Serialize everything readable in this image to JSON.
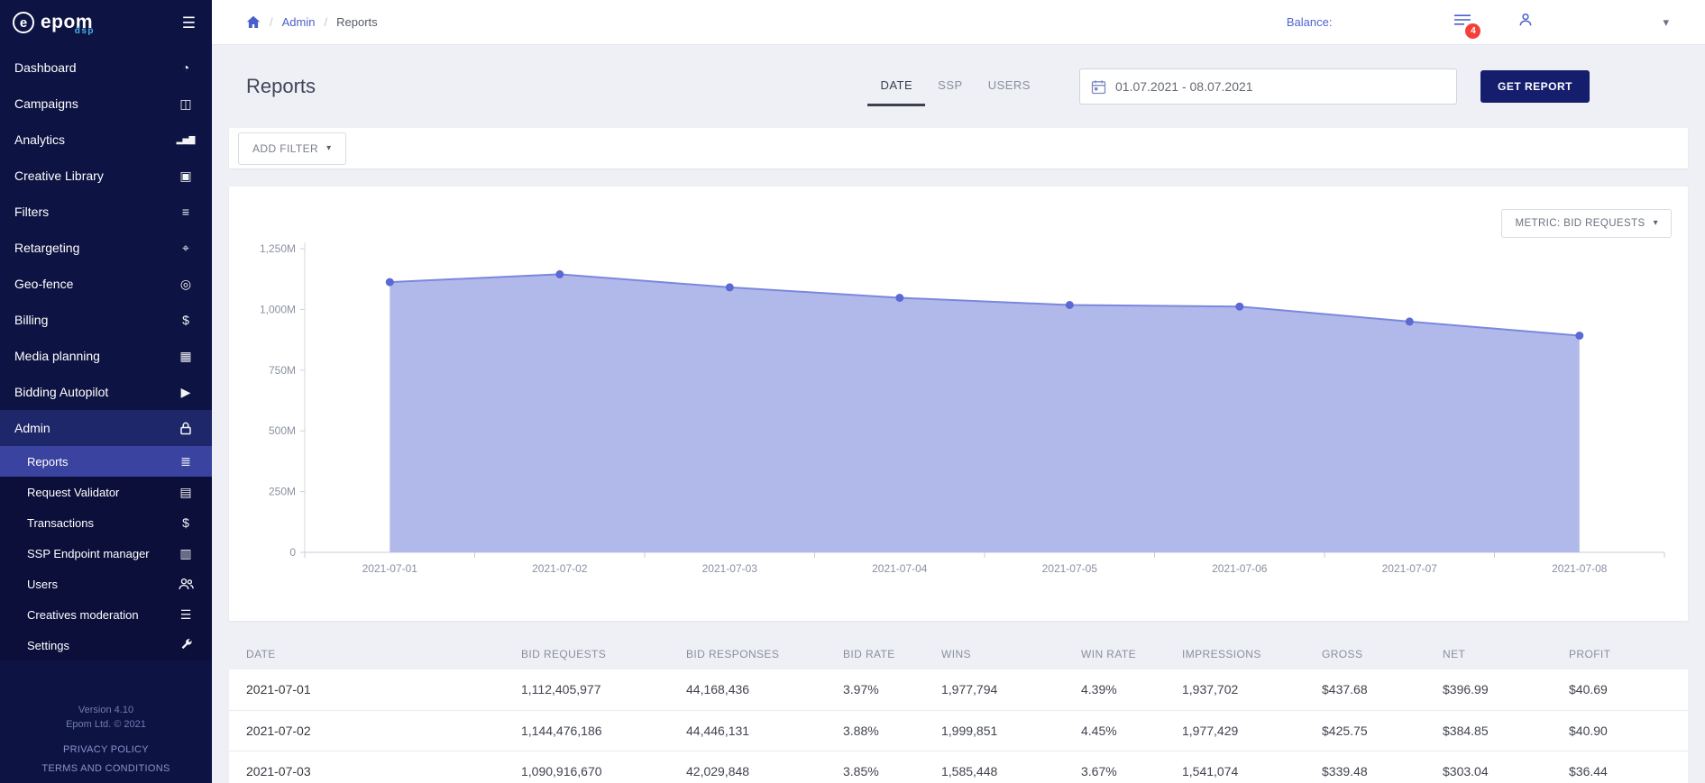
{
  "brand": {
    "mark": "e",
    "name": "epom",
    "sub": "dsp"
  },
  "topbar": {
    "breadcrumb": {
      "admin": "Admin",
      "current": "Reports"
    },
    "balance_label": "Balance:",
    "notification_count": "4"
  },
  "sidebar": {
    "items": [
      {
        "label": "Dashboard",
        "icon": "dashboard-icon"
      },
      {
        "label": "Campaigns",
        "icon": "campaigns-icon"
      },
      {
        "label": "Analytics",
        "icon": "analytics-icon"
      },
      {
        "label": "Creative Library",
        "icon": "creative-library-icon"
      },
      {
        "label": "Filters",
        "icon": "filters-icon"
      },
      {
        "label": "Retargeting",
        "icon": "retargeting-icon"
      },
      {
        "label": "Geo-fence",
        "icon": "geo-fence-icon"
      },
      {
        "label": "Billing",
        "icon": "billing-icon"
      },
      {
        "label": "Media planning",
        "icon": "media-planning-icon"
      },
      {
        "label": "Bidding Autopilot",
        "icon": "bidding-autopilot-icon"
      },
      {
        "label": "Admin",
        "icon": "lock-icon",
        "active": true,
        "children": [
          {
            "label": "Reports",
            "icon": "reports-icon",
            "active": true
          },
          {
            "label": "Request Validator",
            "icon": "request-validator-icon"
          },
          {
            "label": "Transactions",
            "icon": "transactions-icon"
          },
          {
            "label": "SSP Endpoint manager",
            "icon": "ssp-endpoint-icon"
          },
          {
            "label": "Users",
            "icon": "users-icon"
          },
          {
            "label": "Creatives moderation",
            "icon": "creatives-moderation-icon"
          },
          {
            "label": "Settings",
            "icon": "settings-icon"
          }
        ]
      }
    ],
    "footer": {
      "version": "Version 4.10",
      "copyright": "Epom Ltd. © 2021",
      "privacy": "PRIVACY POLICY",
      "terms": "TERMS AND CONDITIONS"
    }
  },
  "page": {
    "title": "Reports",
    "tabs": [
      {
        "label": "DATE",
        "active": true
      },
      {
        "label": "SSP",
        "active": false
      },
      {
        "label": "USERS",
        "active": false
      }
    ],
    "date_range": "01.07.2021 - 08.07.2021",
    "get_report_label": "GET REPORT",
    "add_filter_label": "ADD FILTER",
    "metric_label": "METRIC: BID REQUESTS"
  },
  "chart_data": {
    "type": "area",
    "title": "",
    "x": [
      "2021-07-01",
      "2021-07-02",
      "2021-07-03",
      "2021-07-04",
      "2021-07-05",
      "2021-07-06",
      "2021-07-07",
      "2021-07-08"
    ],
    "series": [
      {
        "name": "Bid Requests",
        "values": [
          1112.4,
          1144.5,
          1090.9,
          1048,
          1018,
          1012,
          950,
          892
        ]
      }
    ],
    "unit": "millions",
    "ylim": [
      0,
      1250
    ],
    "yticks": [
      0,
      250,
      500,
      750,
      1000,
      1250
    ],
    "ytick_labels": [
      "0",
      "250M",
      "500M",
      "750M",
      "1,000M",
      "1,250M"
    ],
    "grid": false,
    "legend": "none",
    "line_color": "#7b87de",
    "fill_color": "#adb5e9",
    "dot_color": "#5b69d3"
  },
  "table": {
    "columns": [
      "DATE",
      "BID REQUESTS",
      "BID RESPONSES",
      "BID RATE",
      "WINS",
      "WIN RATE",
      "IMPRESSIONS",
      "GROSS",
      "NET",
      "PROFIT"
    ],
    "rows": [
      [
        "2021-07-01",
        "1,112,405,977",
        "44,168,436",
        "3.97%",
        "1,977,794",
        "4.39%",
        "1,937,702",
        "$437.68",
        "$396.99",
        "$40.69"
      ],
      [
        "2021-07-02",
        "1,144,476,186",
        "44,446,131",
        "3.88%",
        "1,999,851",
        "4.45%",
        "1,977,429",
        "$425.75",
        "$384.85",
        "$40.90"
      ],
      [
        "2021-07-03",
        "1,090,916,670",
        "42,029,848",
        "3.85%",
        "1,585,448",
        "3.67%",
        "1,541,074",
        "$339.48",
        "$303.04",
        "$36.44"
      ]
    ]
  },
  "colors": {
    "sidebar_bg": "#0d1342",
    "active_submenu": "#3a44a0",
    "accent_blue": "#4a5fc9",
    "button_navy": "#151e6d",
    "badge_red": "#f4403a"
  }
}
